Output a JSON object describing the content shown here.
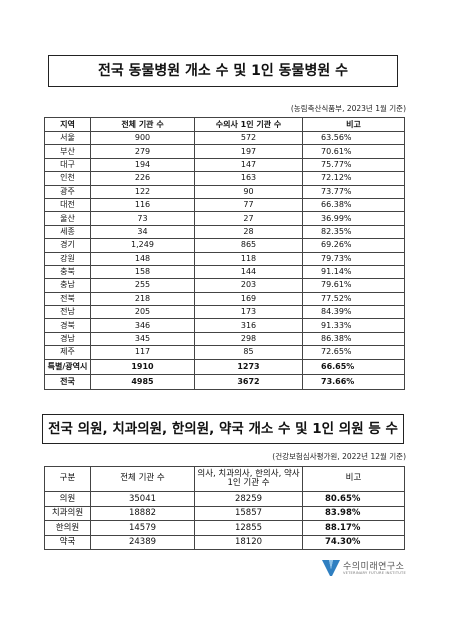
{
  "section1": {
    "title": "전국 동물병원 개소 수 및 1인 동물병원 수",
    "source": "(농림축산식품부, 2023년 1월 기준)",
    "headers": [
      "지역",
      "전체 기관 수",
      "수의사 1인 기관 수",
      "비고"
    ],
    "rows": [
      [
        "서울",
        "900",
        "572",
        "63.56%"
      ],
      [
        "부산",
        "279",
        "197",
        "70.61%"
      ],
      [
        "대구",
        "194",
        "147",
        "75.77%"
      ],
      [
        "인천",
        "226",
        "163",
        "72.12%"
      ],
      [
        "광주",
        "122",
        "90",
        "73.77%"
      ],
      [
        "대전",
        "116",
        "77",
        "66.38%"
      ],
      [
        "울산",
        "73",
        "27",
        "36.99%"
      ],
      [
        "세종",
        "34",
        "28",
        "82.35%"
      ],
      [
        "경기",
        "1,249",
        "865",
        "69.26%"
      ],
      [
        "강원",
        "148",
        "118",
        "79.73%"
      ],
      [
        "충북",
        "158",
        "144",
        "91.14%"
      ],
      [
        "충남",
        "255",
        "203",
        "79.61%"
      ],
      [
        "전북",
        "218",
        "169",
        "77.52%"
      ],
      [
        "전남",
        "205",
        "173",
        "84.39%"
      ],
      [
        "경북",
        "346",
        "316",
        "91.33%"
      ],
      [
        "경남",
        "345",
        "298",
        "86.38%"
      ],
      [
        "제주",
        "117",
        "85",
        "72.65%"
      ]
    ],
    "summary": [
      [
        "특별/광역시",
        "1910",
        "1273",
        "66.65%"
      ],
      [
        "전국",
        "4985",
        "3672",
        "73.66%"
      ]
    ]
  },
  "section2": {
    "title": "전국 의원, 치과의원, 한의원, 약국 개소 수 및 1인 의원 등 수",
    "source": "(건강보험심사평가원, 2022년 12월 기준)",
    "headers": [
      "구분",
      "전체 기관 수",
      "의사, 치과의사, 한의사, 약사 1인 기관 수",
      "비고"
    ],
    "rows": [
      [
        "의원",
        "35041",
        "28259",
        "80.65%"
      ],
      [
        "치과의원",
        "18882",
        "15857",
        "83.98%"
      ],
      [
        "한의원",
        "14579",
        "12855",
        "88.17%"
      ],
      [
        "약국",
        "24389",
        "18120",
        "74.30%"
      ]
    ]
  },
  "logo": {
    "name": "수의미래연구소",
    "subtitle": "VETERINARY FUTURE INSTITUTE",
    "color": "#2f7fc1"
  }
}
